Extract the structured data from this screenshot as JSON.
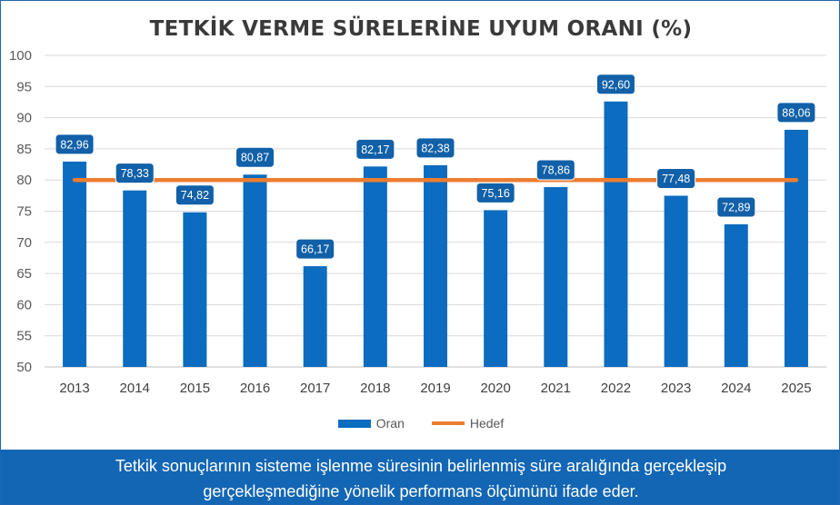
{
  "chart_data": {
    "type": "bar",
    "title": "TETKİK VERME SÜRELERİNE UYUM ORANI (%)",
    "categories": [
      "2013",
      "2014",
      "2015",
      "2016",
      "2017",
      "2018",
      "2019",
      "2020",
      "2021",
      "2022",
      "2023",
      "2024",
      "2025"
    ],
    "series": [
      {
        "name": "Oran",
        "type": "bar",
        "color": "#0c6cbf",
        "values": [
          82.96,
          78.33,
          74.82,
          80.87,
          66.17,
          82.17,
          82.38,
          75.16,
          78.86,
          92.6,
          77.48,
          72.89,
          88.06
        ],
        "labels": [
          "82,96",
          "78,33",
          "74,82",
          "80,87",
          "66,17",
          "82,17",
          "82,38",
          "75,16",
          "78,86",
          "92,60",
          "77,48",
          "72,89",
          "88,06"
        ]
      },
      {
        "name": "Hedef",
        "type": "line",
        "color": "#ed7d31",
        "values": [
          80,
          80,
          80,
          80,
          80,
          80,
          80,
          80,
          80,
          80,
          80,
          80,
          80
        ]
      }
    ],
    "ylim": [
      50,
      100
    ],
    "yticks": [
      "50",
      "55",
      "60",
      "65",
      "70",
      "75",
      "80",
      "85",
      "90",
      "95",
      "100"
    ],
    "grid": true,
    "legend_position": "bottom"
  },
  "footer": {
    "line1": "Tetkik sonuçlarının sisteme işlenme süresinin belirlenmiş süre aralığında gerçekleşip",
    "line2": "gerçekleşmediğine yönelik performans ölçümünü ifade eder."
  }
}
